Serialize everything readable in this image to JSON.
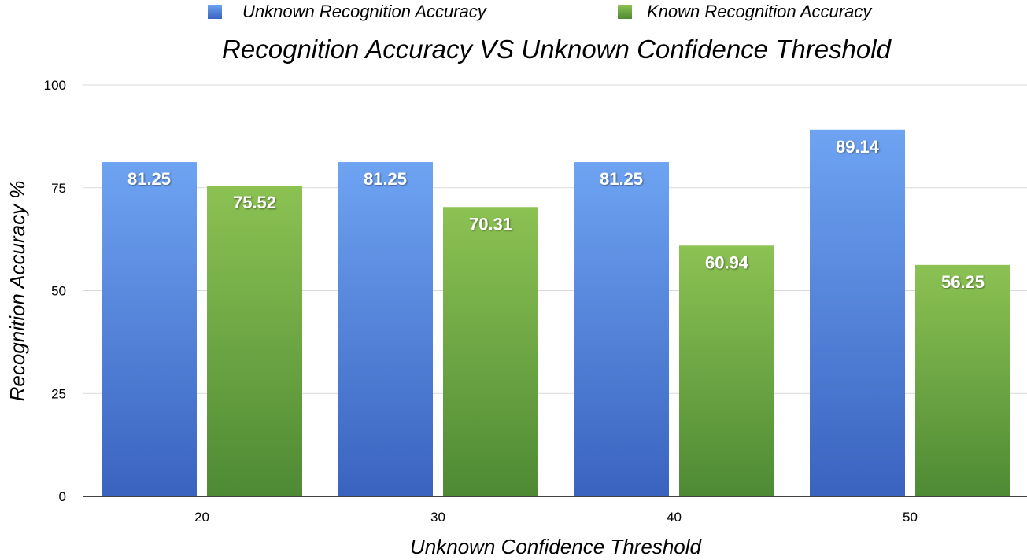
{
  "chart_data": {
    "type": "bar",
    "title": "Recognition Accuracy VS Unknown Confidence Threshold",
    "xlabel": "Unknown Confidence Threshold",
    "ylabel": "Recognition Accuracy %",
    "categories": [
      "20",
      "30",
      "40",
      "50"
    ],
    "series": [
      {
        "name": "Unknown Recognition Accuracy",
        "values": [
          81.25,
          81.25,
          81.25,
          89.14
        ],
        "labels": [
          "81.25",
          "81.25",
          "81.25",
          "89.14"
        ],
        "color": "#5b8ee6"
      },
      {
        "name": "Known Recognition Accuracy",
        "values": [
          75.52,
          70.31,
          60.94,
          56.25
        ],
        "labels": [
          "75.52",
          "70.31",
          "60.94",
          "56.25"
        ],
        "color": "#6aa845"
      }
    ],
    "ylim": [
      0,
      100
    ],
    "yticks": [
      0,
      25,
      50,
      75,
      100
    ],
    "ytick_labels": [
      "0",
      "25",
      "50",
      "75",
      "100"
    ],
    "grid": true,
    "legend_position": "top"
  }
}
